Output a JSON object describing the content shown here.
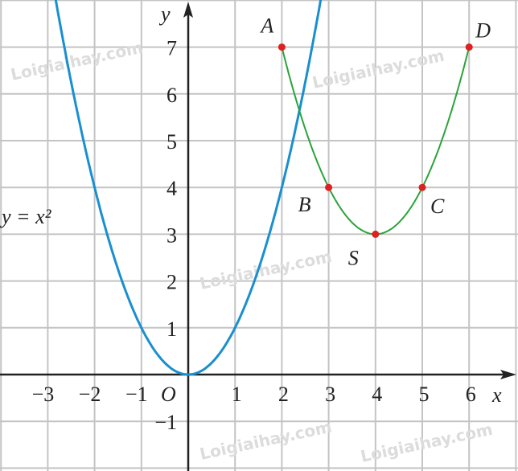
{
  "chart_data": {
    "type": "line",
    "xlabel": "x",
    "ylabel": "y",
    "origin_label": "O",
    "xlim": [
      -4,
      7
    ],
    "ylim": [
      -2,
      8
    ],
    "grid": true,
    "x_ticks": [
      {
        "v": -3,
        "label": "−3"
      },
      {
        "v": -2,
        "label": "−2"
      },
      {
        "v": -1,
        "label": "−1"
      },
      {
        "v": 1,
        "label": "1"
      },
      {
        "v": 2,
        "label": "2"
      },
      {
        "v": 3,
        "label": "3"
      },
      {
        "v": 4,
        "label": "4"
      },
      {
        "v": 5,
        "label": "5"
      },
      {
        "v": 6,
        "label": "6"
      }
    ],
    "y_ticks": [
      {
        "v": -1,
        "label": "−1"
      },
      {
        "v": 1,
        "label": "1"
      },
      {
        "v": 2,
        "label": "2"
      },
      {
        "v": 3,
        "label": "3"
      },
      {
        "v": 4,
        "label": "4"
      },
      {
        "v": 5,
        "label": "5"
      },
      {
        "v": 6,
        "label": "6"
      },
      {
        "v": 7,
        "label": "7"
      }
    ],
    "series": [
      {
        "label": "y = x²",
        "formula": "x^2",
        "color": "#1a8fd0",
        "x_range": [
          -3,
          3
        ]
      },
      {
        "formula": "(x-4)^2+3",
        "color": "#2aa33a",
        "x_range": [
          2,
          6
        ]
      }
    ],
    "points": [
      {
        "label": "A",
        "x": 2,
        "y": 7
      },
      {
        "label": "B",
        "x": 3,
        "y": 4
      },
      {
        "label": "S",
        "x": 4,
        "y": 3
      },
      {
        "label": "C",
        "x": 5,
        "y": 4
      },
      {
        "label": "D",
        "x": 6,
        "y": 7
      }
    ],
    "point_color": "#e02020"
  },
  "watermark": "Loigiaihay.com"
}
